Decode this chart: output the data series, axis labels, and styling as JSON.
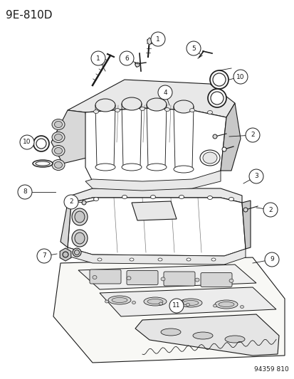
{
  "title": "9E-810D",
  "footer": "94359 810",
  "bg_color": "#ffffff",
  "line_color": "#1a1a1a",
  "title_fontsize": 11,
  "footer_fontsize": 6.5,
  "figsize": [
    4.14,
    5.33
  ],
  "dpi": 100
}
